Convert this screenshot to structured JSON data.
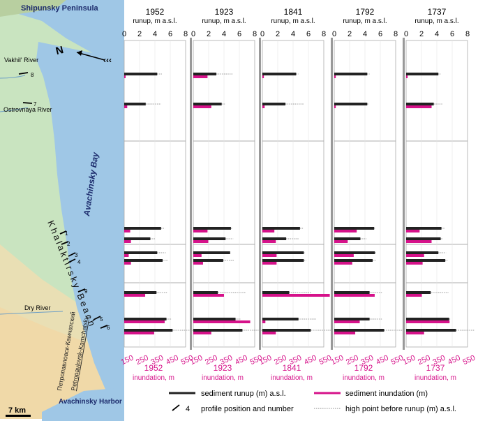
{
  "map": {
    "labels": {
      "peninsula": "Shipunsky Peninsula",
      "vakhil": "Vakhil' River",
      "ostrovnaya": "Ostrovnaya River",
      "bay": "Avachinsky Bay",
      "beach": "Khalaktirsky Beach",
      "dry": "Dry River",
      "harbor": "Avachinsky Harbor",
      "city_ru": "Петропавловск-Камчатский",
      "city_en": "Petropavlovsk-Kamchatsky",
      "scale": "7 km",
      "north": "N"
    },
    "profile_numbers": [
      "1",
      "2",
      "3",
      "4",
      "5",
      "6",
      "7",
      "8",
      "9"
    ]
  },
  "legend": {
    "runup": "sediment runup (m) a.s.l.",
    "inundation": "sediment inundation (m)",
    "profile": "profile position and number",
    "profile_num": "4",
    "highpoint": "high point before runup (m) a.s.l."
  },
  "colors": {
    "runup": "#222222",
    "inundation": "#d6128a",
    "water": "#9fc7e6",
    "land": "#c9e4c0",
    "grid": "#aaaaaa",
    "separator": "#999999"
  },
  "chart_data": {
    "type": "bar",
    "top_axis_label": "runup, m a.s.l.",
    "bottom_axis_label": "inundation, m",
    "runup_ticks": [
      "0",
      "2",
      "4",
      "6",
      "8"
    ],
    "runup_lim": [
      0,
      8
    ],
    "inundation_ticks": [
      "150",
      "250",
      "350",
      "450",
      "550"
    ],
    "inundation_tick_values": [
      150,
      250,
      350,
      450,
      550
    ],
    "inundation_lim": [
      150,
      560
    ],
    "profiles": [
      "8",
      "7",
      "1",
      "2",
      "3",
      "4",
      "9",
      "5",
      "6"
    ],
    "panels": [
      {
        "event": "1952",
        "runup": [
          4.3,
          2.8,
          4.8,
          3.4,
          4.3,
          5.0,
          4.2,
          5.5,
          6.3
        ],
        "inundation": [
          155,
          170,
          190,
          195,
          180,
          195,
          290,
          420,
          350
        ],
        "highpoint": [
          4.9,
          4.8,
          5.3,
          4.0,
          5.4,
          5.7,
          5.6,
          6.1,
          8.9
        ]
      },
      {
        "event": "1923",
        "runup": [
          3.0,
          3.7,
          4.9,
          4.2,
          4.8,
          3.9,
          3.2,
          5.5,
          6.4
        ],
        "inundation": [
          245,
          270,
          245,
          250,
          205,
          215,
          355,
          530,
          270
        ],
        "highpoint": [
          5.2,
          4.2,
          5.1,
          5.2,
          4.6,
          5.3,
          6.8,
          6.2,
          9.0
        ]
      },
      {
        "event": "1841",
        "runup": [
          4.4,
          3.0,
          4.9,
          3.1,
          5.4,
          5.4,
          3.5,
          4.7,
          6.3
        ],
        "inundation": [
          160,
          165,
          230,
          240,
          245,
          245,
          600,
          170,
          240
        ],
        "highpoint": [
          4.7,
          5.4,
          5.3,
          4.7,
          5.5,
          5.7,
          6.4,
          7.0,
          8.9
        ]
      },
      {
        "event": "1792",
        "runup": [
          4.3,
          4.3,
          5.2,
          3.4,
          5.3,
          5.0,
          4.6,
          4.6,
          6.5
        ],
        "inundation": [
          160,
          160,
          300,
          240,
          280,
          270,
          420,
          320,
          290
        ],
        "highpoint": [
          4.6,
          4.5,
          5.3,
          4.2,
          5.5,
          5.4,
          6.2,
          6.2,
          8.9
        ]
      },
      {
        "event": "1737",
        "runup": [
          4.2,
          3.6,
          4.6,
          4.5,
          4.2,
          5.1,
          3.2,
          5.6,
          6.5
        ],
        "inundation": [
          160,
          320,
          240,
          320,
          270,
          260,
          255,
          440,
          270
        ],
        "highpoint": [
          4.5,
          4.7,
          5.0,
          4.8,
          5.2,
          5.4,
          5.5,
          5.8,
          8.9
        ]
      }
    ]
  }
}
